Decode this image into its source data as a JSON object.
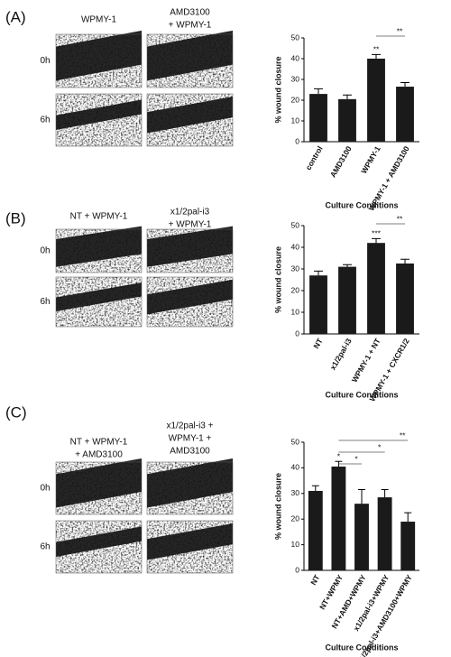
{
  "panels": [
    {
      "label": "(A)",
      "conditions": [
        [
          "WPMY-1"
        ],
        [
          "AMD3100",
          "+ WPMY-1"
        ]
      ],
      "times": [
        "0h",
        "6h"
      ]
    },
    {
      "label": "(B)",
      "conditions": [
        [
          "NT + WPMY-1"
        ],
        [
          "x1/2pal-i3",
          "+ WPMY-1"
        ]
      ],
      "times": [
        "0h",
        "6h"
      ]
    },
    {
      "label": "(C)",
      "conditions": [
        [
          "NT + WPMY-1",
          "+ AMD3100"
        ],
        [
          "x1/2pal-i3 +",
          "WPMY-1 +",
          "AMD3100"
        ]
      ],
      "times": [
        "0h",
        "6h"
      ]
    }
  ],
  "chart_data": [
    {
      "type": "bar",
      "y_label": "% wound closure",
      "x_label": "Culture Conditions",
      "categories": [
        "control",
        "AMD3100",
        "WPMY-1",
        "WPMY-1 + AMD3100"
      ],
      "values": [
        23,
        20.5,
        40,
        26.5
      ],
      "errors": [
        2.5,
        2,
        2,
        2
      ],
      "color": "#1a1a1a",
      "ylim": [
        0,
        50
      ],
      "yticks": [
        0,
        10,
        20,
        30,
        40,
        50
      ],
      "annotations": [
        {
          "text": "**",
          "over": "WPMY-1"
        },
        {
          "text": "**",
          "between": [
            "WPMY-1",
            "WPMY-1 + AMD3100"
          ]
        }
      ]
    },
    {
      "type": "bar",
      "y_label": "% wound closure",
      "x_label": "Culture Conditions",
      "categories": [
        "NT",
        "x1/2pal-i3",
        "WPMY-1 + NT",
        "WPMY-1 + CXCR1/2"
      ],
      "values": [
        27,
        31,
        42,
        32.5
      ],
      "errors": [
        2,
        1,
        2,
        2
      ],
      "color": "#1a1a1a",
      "ylim": [
        0,
        50
      ],
      "yticks": [
        0,
        10,
        20,
        30,
        40,
        50
      ],
      "annotations": [
        {
          "text": "***",
          "over": "WPMY-1 + NT"
        },
        {
          "text": "**",
          "between": [
            "WPMY-1 + NT",
            "WPMY-1 + CXCR1/2"
          ]
        }
      ]
    },
    {
      "type": "bar",
      "y_label": "% wound closure",
      "x_label": "Culture Conditions",
      "categories": [
        "NT",
        "NT+WPMY",
        "NT+AMD+WPMY",
        "x1/2pal-i3+WPMY",
        "x1/2pal-i3+AMD3100+WPMY"
      ],
      "values": [
        31,
        40.5,
        26,
        28.5,
        19
      ],
      "errors": [
        2,
        2,
        5.5,
        3,
        3.5
      ],
      "color": "#1a1a1a",
      "ylim": [
        0,
        50
      ],
      "yticks": [
        0,
        10,
        20,
        30,
        40,
        50
      ],
      "annotations": [
        {
          "text": "*",
          "over": "NT+WPMY"
        },
        {
          "text": "**",
          "between": [
            "NT+WPMY",
            "x1/2pal-i3+AMD3100+WPMY"
          ]
        },
        {
          "text": "*",
          "between": [
            "NT+WPMY",
            "x1/2pal-i3+WPMY"
          ]
        },
        {
          "text": "*",
          "between": [
            "NT+WPMY",
            "NT+AMD+WPMY"
          ]
        }
      ]
    }
  ]
}
